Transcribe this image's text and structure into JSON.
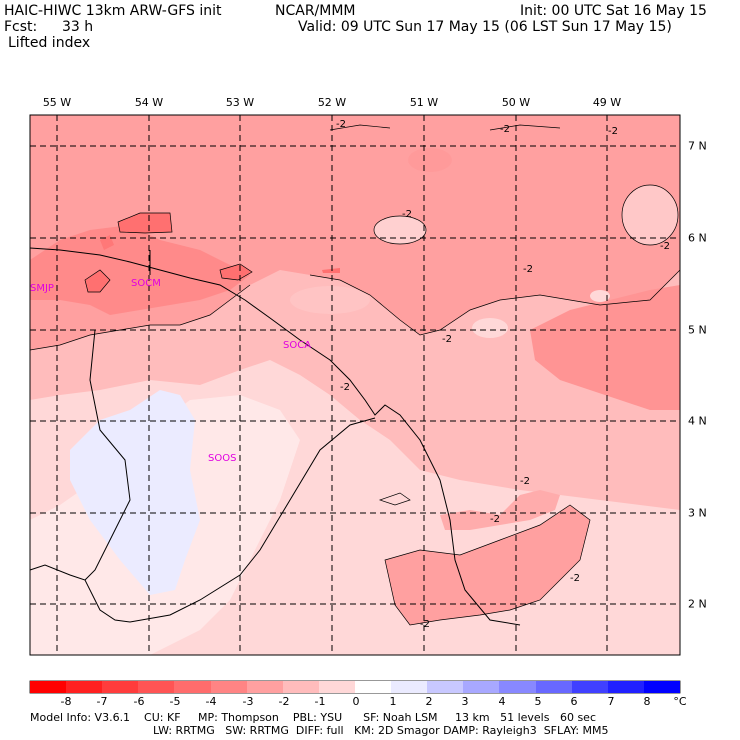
{
  "header": {
    "model": "HAIC-HIWC 13km ARW-GFS init",
    "org": "NCAR/MMM",
    "init": "Init: 00 UTC Sat 16 May 15",
    "fcst_label": "Fcst:",
    "fcst_value": "33 h",
    "valid": "Valid: 09 UTC Sun 17 May 15 (06 LST Sun 17 May 15)",
    "field": "Lifted index"
  },
  "map": {
    "longitudes": [
      {
        "label": "55 W",
        "lon": -55
      },
      {
        "label": "54 W",
        "lon": -54
      },
      {
        "label": "53 W",
        "lon": -53
      },
      {
        "label": "52 W",
        "lon": -52
      },
      {
        "label": "51 W",
        "lon": -51
      },
      {
        "label": "50 W",
        "lon": -50
      },
      {
        "label": "49 W",
        "lon": -49
      }
    ],
    "latitudes": [
      {
        "label": "7 N",
        "lat": 7
      },
      {
        "label": "6 N",
        "lat": 6
      },
      {
        "label": "5 N",
        "lat": 5
      },
      {
        "label": "4 N",
        "lat": 4
      },
      {
        "label": "3 N",
        "lat": 3
      },
      {
        "label": "2 N",
        "lat": 2
      }
    ],
    "stations": [
      {
        "id": "SMJP",
        "name": "smjp-station-label"
      },
      {
        "id": "SOCM",
        "name": "socm-station-label"
      },
      {
        "id": "SOCA",
        "name": "soca-station-label"
      },
      {
        "id": "SOOS",
        "name": "soos-station-label"
      }
    ],
    "contour_label": "-2"
  },
  "colorbar": {
    "ticks": [
      "-8",
      "-7",
      "-6",
      "-5",
      "-4",
      "-3",
      "-2",
      "-1",
      "0",
      "1",
      "2",
      "3",
      "4",
      "5",
      "6",
      "7",
      "8"
    ],
    "unit": "°C",
    "colors": [
      "#ff0000",
      "#ff2020",
      "#ff3c3c",
      "#ff5454",
      "#ff6c6c",
      "#ff8484",
      "#ffa0a0",
      "#ffbcbc",
      "#ffd8d8",
      "#ffffff",
      "#ebebff",
      "#c8c8ff",
      "#a8a8ff",
      "#8888ff",
      "#6868ff",
      "#4040ff",
      "#2020ff",
      "#0000ff"
    ]
  },
  "footer": {
    "line1": "Model Info: V3.6.1    CU: KF     MP: Thompson    PBL: YSU      SF: Noah LSM     13 km   51 levels   60 sec",
    "line2": "LW: RRTMG   SW: RRTMG  DIFF: full   KM: 2D Smagor DAMP: Rayleigh3  SFLAY: MM5"
  }
}
